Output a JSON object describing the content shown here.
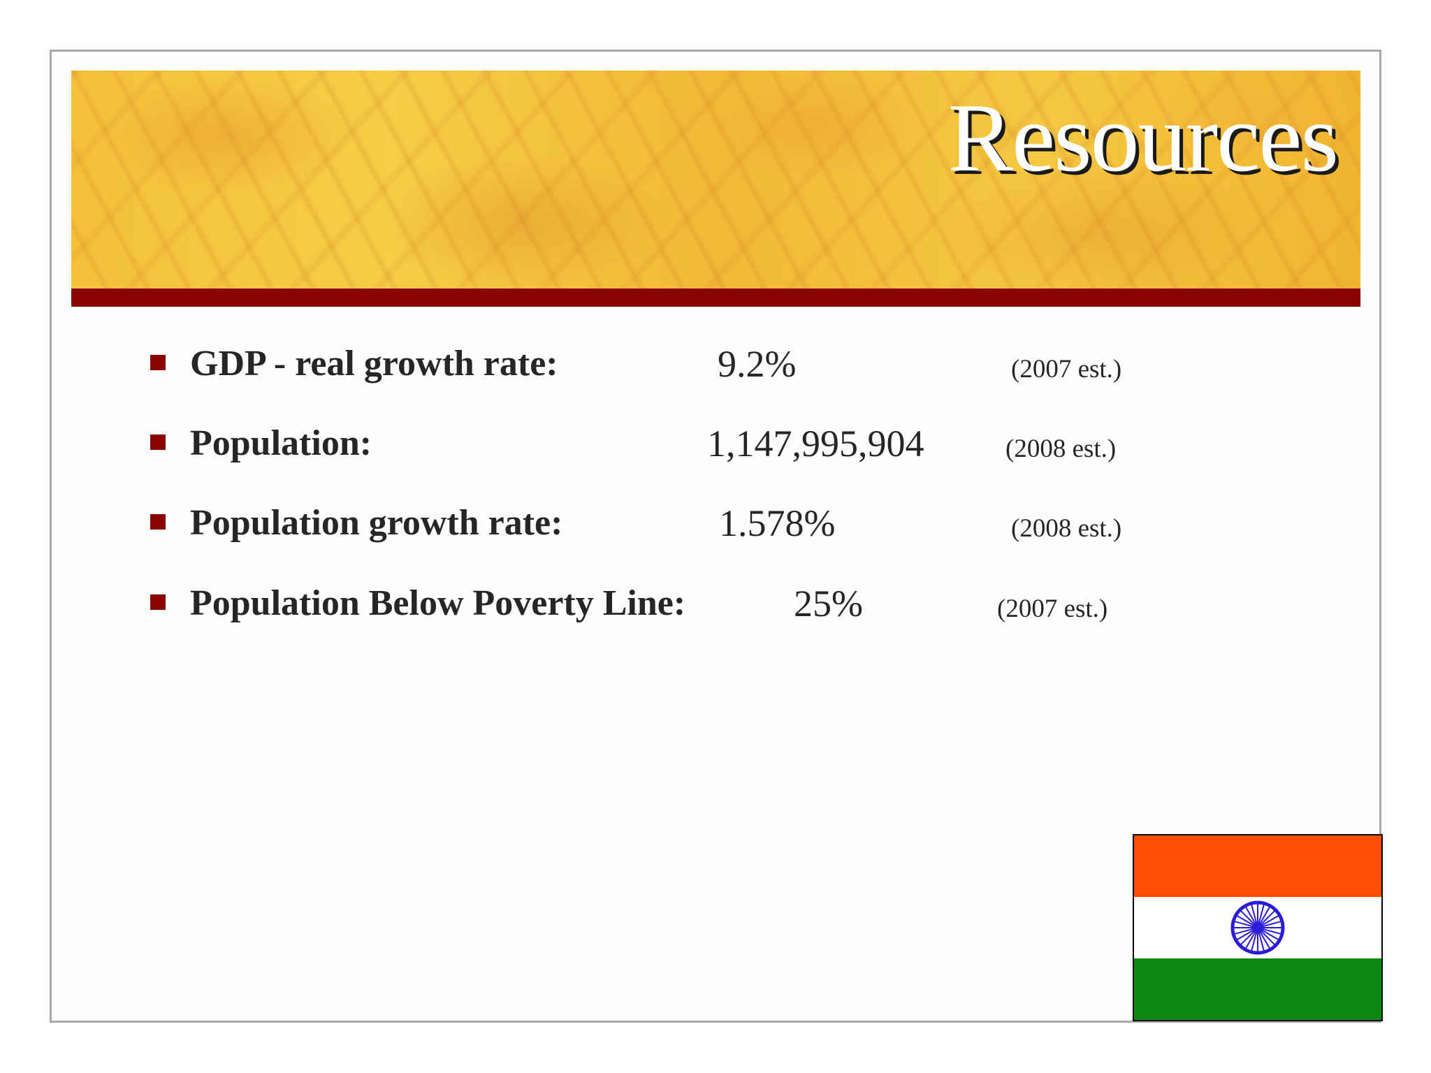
{
  "slide": {
    "title": "Resources",
    "items": [
      {
        "label": "GDP - real growth rate:",
        "value": "9.2%",
        "note": "(2007 est.)"
      },
      {
        "label": "Population:",
        "value": "1,147,995,904",
        "note": "(2008 est.)"
      },
      {
        "label": "Population growth rate:",
        "value": "1.578%",
        "note": "(2008 est.)"
      },
      {
        "label": "Population Below Poverty Line:",
        "value": "25%",
        "note": "(2007 est.)"
      }
    ]
  },
  "colors": {
    "accent_bar": "#8b0000",
    "bullet": "#8b0000",
    "flag_saffron": "#ff4f07",
    "flag_white": "#ffffff",
    "flag_green": "#0b8a0f",
    "chakra": "#2a1bd9"
  }
}
